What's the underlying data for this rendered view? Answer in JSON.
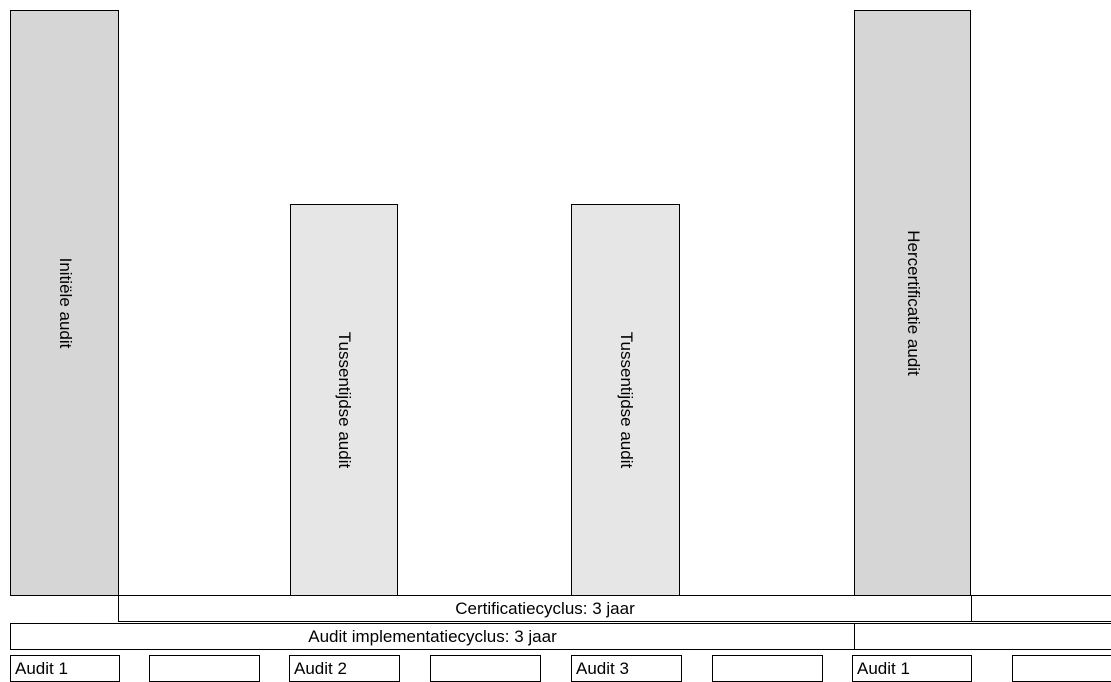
{
  "audits": [
    {
      "label": "Initiële audit",
      "shade": "#d6d6d6"
    },
    {
      "label": "Tussentijdse audit",
      "shade": "#e6e6e6"
    },
    {
      "label": "Tussentijdse audit",
      "shade": "#e6e6e6"
    },
    {
      "label": "Hercertificatie audit",
      "shade": "#d6d6d6"
    }
  ],
  "certification_cycle": "Certificatiecyclus: 3 jaar",
  "implementation_cycle": "Audit implementatiecyclus: 3 jaar",
  "audit_cells": [
    "Audit 1",
    "Audit 2",
    "Audit 3",
    "Audit 1"
  ]
}
